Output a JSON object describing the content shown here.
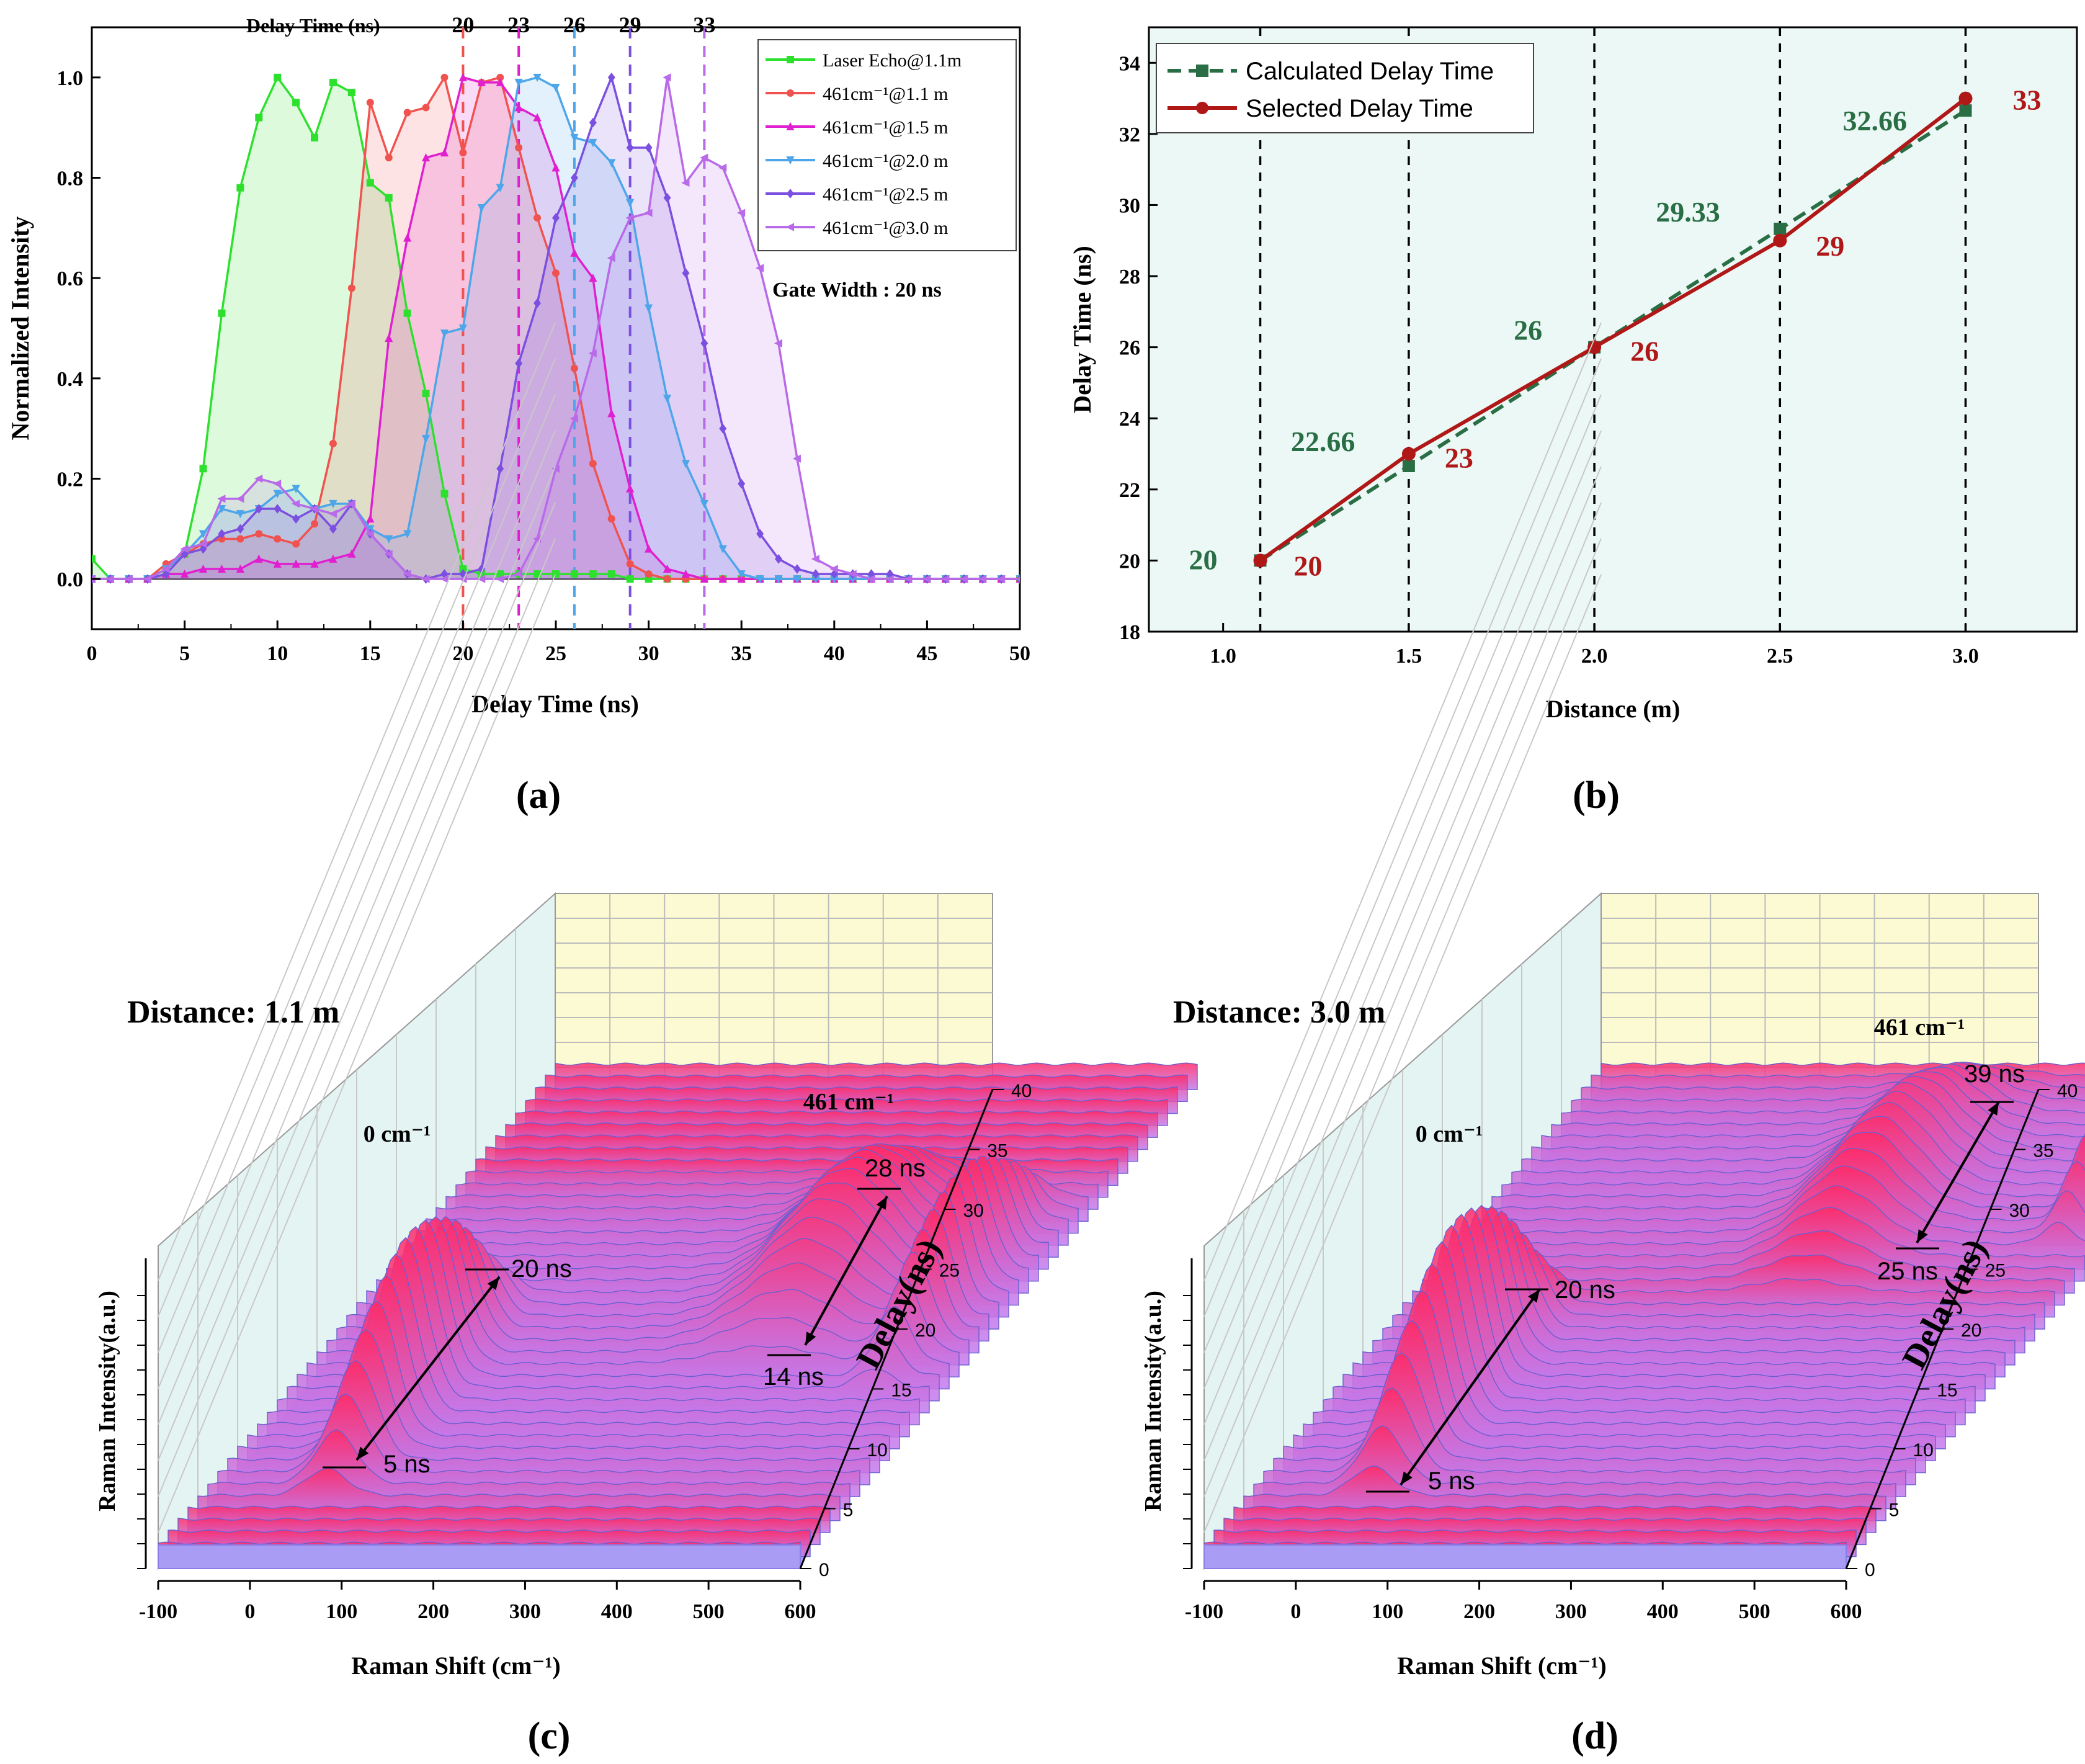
{
  "chart_data": [
    {
      "panel_label": "(a)",
      "type": "area",
      "title": "",
      "xlabel": "Delay Time (ns)",
      "ylabel": "Normalized  Intensity",
      "top_label": "Delay Time (ns)",
      "xlim": [
        0,
        50
      ],
      "ylim": [
        -0.1,
        1.1
      ],
      "xticks": [
        0,
        5,
        10,
        15,
        20,
        25,
        30,
        35,
        40,
        45,
        50
      ],
      "yticks": [
        0.0,
        0.2,
        0.4,
        0.6,
        0.8,
        1.0
      ],
      "annotation": "Gate Width : 20 ns",
      "markers": [
        {
          "x": 20,
          "label": "20",
          "color": "#f0524f"
        },
        {
          "x": 23,
          "label": "23",
          "color": "#e020d0"
        },
        {
          "x": 26,
          "label": "26",
          "color": "#4da6ea"
        },
        {
          "x": 29,
          "label": "29",
          "color": "#7b4fe0"
        },
        {
          "x": 33,
          "label": "33",
          "color": "#b86ae8"
        }
      ],
      "x": [
        0,
        1,
        2,
        3,
        4,
        5,
        6,
        7,
        8,
        9,
        10,
        11,
        12,
        13,
        14,
        15,
        16,
        17,
        18,
        19,
        20,
        21,
        22,
        23,
        24,
        25,
        26,
        27,
        28,
        29,
        30,
        31,
        32,
        33,
        34,
        35,
        36,
        37,
        38,
        39,
        40,
        41,
        42,
        43,
        44,
        45,
        46,
        47,
        48,
        49,
        50
      ],
      "series": [
        {
          "name": "Laser Echo@1.1m",
          "color": "#2ee02e",
          "marker": "square",
          "values": [
            0.04,
            0.0,
            0.0,
            0.0,
            0.02,
            0.05,
            0.22,
            0.53,
            0.78,
            0.92,
            1.0,
            0.95,
            0.88,
            0.99,
            0.97,
            0.79,
            0.76,
            0.53,
            0.37,
            0.17,
            0.02,
            0.01,
            0.01,
            0.01,
            0.01,
            0.01,
            0.01,
            0.01,
            0.01,
            0.0,
            0.0,
            0.0,
            0.0,
            0.0,
            0.0,
            0.0,
            0.0,
            0.0,
            0.0,
            0.0,
            0.0,
            0.0,
            0.0,
            0.0,
            0.0,
            0.0,
            0.0,
            0.0,
            0.0,
            0.0,
            0.0
          ]
        },
        {
          "name": "461cm⁻¹@1.1 m",
          "color": "#f0524f",
          "marker": "circle",
          "values": [
            0.0,
            0.0,
            0.0,
            0.0,
            0.03,
            0.05,
            0.07,
            0.08,
            0.08,
            0.09,
            0.08,
            0.07,
            0.11,
            0.27,
            0.58,
            0.95,
            0.84,
            0.93,
            0.94,
            1.0,
            0.85,
            0.99,
            1.0,
            0.86,
            0.72,
            0.61,
            0.42,
            0.23,
            0.12,
            0.03,
            0.01,
            0.0,
            0.0,
            0.0,
            0.0,
            0.0,
            0.0,
            0.0,
            0.0,
            0.0,
            0.0,
            0.0,
            0.0,
            0.0,
            0.0,
            0.0,
            0.0,
            0.0,
            0.0,
            0.0,
            0.0
          ]
        },
        {
          "name": "461cm⁻¹@1.5 m",
          "color": "#e020d0",
          "marker": "triangle-up",
          "values": [
            0.0,
            0.0,
            0.0,
            0.0,
            0.01,
            0.01,
            0.02,
            0.02,
            0.02,
            0.04,
            0.03,
            0.03,
            0.03,
            0.04,
            0.05,
            0.12,
            0.48,
            0.68,
            0.84,
            0.85,
            1.0,
            0.99,
            0.99,
            0.94,
            0.92,
            0.82,
            0.65,
            0.6,
            0.33,
            0.18,
            0.06,
            0.02,
            0.01,
            0.0,
            0.0,
            0.0,
            0.0,
            0.0,
            0.0,
            0.0,
            0.0,
            0.0,
            0.0,
            0.0,
            0.0,
            0.0,
            0.0,
            0.0,
            0.0,
            0.0,
            0.0
          ]
        },
        {
          "name": "461cm⁻¹@2.0 m",
          "color": "#4da6ea",
          "marker": "triangle-down",
          "values": [
            0.0,
            0.0,
            0.0,
            0.0,
            0.02,
            0.05,
            0.09,
            0.14,
            0.13,
            0.14,
            0.17,
            0.18,
            0.14,
            0.15,
            0.15,
            0.1,
            0.08,
            0.09,
            0.28,
            0.49,
            0.5,
            0.74,
            0.78,
            0.99,
            1.0,
            0.98,
            0.88,
            0.87,
            0.83,
            0.75,
            0.54,
            0.36,
            0.23,
            0.15,
            0.06,
            0.01,
            0.0,
            0.0,
            0.0,
            0.0,
            0.0,
            0.0,
            0.0,
            0.0,
            0.0,
            0.0,
            0.0,
            0.0,
            0.0,
            0.0,
            0.0
          ]
        },
        {
          "name": "461cm⁻¹@2.5 m",
          "color": "#7b4fe0",
          "marker": "diamond",
          "values": [
            0.0,
            0.0,
            0.0,
            0.0,
            0.01,
            0.05,
            0.06,
            0.09,
            0.1,
            0.14,
            0.14,
            0.12,
            0.14,
            0.1,
            0.15,
            0.09,
            0.05,
            0.01,
            0.0,
            0.01,
            0.01,
            0.02,
            0.22,
            0.43,
            0.55,
            0.72,
            0.8,
            0.91,
            1.0,
            0.86,
            0.86,
            0.76,
            0.61,
            0.47,
            0.3,
            0.19,
            0.09,
            0.04,
            0.02,
            0.01,
            0.01,
            0.01,
            0.01,
            0.01,
            0.0,
            0.0,
            0.0,
            0.0,
            0.0,
            0.0,
            0.0
          ]
        },
        {
          "name": "461cm⁻¹@3.0 m",
          "color": "#b86ae8",
          "marker": "triangle-left",
          "values": [
            0.0,
            0.0,
            0.0,
            0.0,
            0.02,
            0.06,
            0.07,
            0.16,
            0.16,
            0.2,
            0.19,
            0.15,
            0.14,
            0.13,
            0.15,
            0.09,
            0.05,
            0.01,
            0.0,
            0.0,
            0.0,
            0.0,
            0.0,
            0.01,
            0.08,
            0.22,
            0.32,
            0.45,
            0.64,
            0.72,
            0.73,
            1.0,
            0.79,
            0.84,
            0.82,
            0.73,
            0.62,
            0.47,
            0.24,
            0.04,
            0.02,
            0.01,
            0.0,
            0.0,
            0.0,
            0.0,
            0.0,
            0.0,
            0.0,
            0.0,
            0.0
          ]
        }
      ]
    },
    {
      "panel_label": "(b)",
      "type": "line",
      "title": "",
      "xlabel": "Distance (m)",
      "ylabel": "Delay Time (ns)",
      "xlim": [
        0.8,
        3.3
      ],
      "ylim": [
        18,
        35
      ],
      "xticks": [
        1.0,
        1.5,
        2.0,
        2.5,
        3.0
      ],
      "yticks": [
        18,
        20,
        22,
        24,
        26,
        28,
        30,
        32,
        34
      ],
      "vlines": [
        1.1,
        1.5,
        2.0,
        2.5,
        3.0
      ],
      "x": [
        1.1,
        1.5,
        2.0,
        2.5,
        3.0
      ],
      "series": [
        {
          "name": "Calculated Delay Time",
          "color": "#2a6e45",
          "style": "dashed",
          "marker": "square",
          "values": [
            20,
            22.66,
            26,
            29.33,
            32.66
          ],
          "labels": [
            "20",
            "22.66",
            "26",
            "29.33",
            "32.66"
          ]
        },
        {
          "name": "Selected Delay Time",
          "color": "#b01818",
          "style": "solid",
          "marker": "circle",
          "values": [
            20,
            23,
            26,
            29,
            33
          ],
          "labels": [
            "20",
            "23",
            "26",
            "29",
            "33"
          ]
        }
      ]
    },
    {
      "panel_label": "(c)",
      "type": "waterfall-3d",
      "distance_label": "Distance: 1.1 m",
      "xlabel": "Raman Shift (cm⁻¹)",
      "ylabel": "Raman Intensity(a.u.)",
      "zlabel": "Delay(ns)",
      "xticks": [
        -100,
        0,
        100,
        200,
        300,
        400,
        500,
        600
      ],
      "zticks": [
        0,
        5,
        10,
        15,
        20,
        25,
        30,
        35,
        40
      ],
      "peak_labels": [
        "0 cm⁻¹",
        "461 cm⁻¹"
      ],
      "ranges": [
        {
          "from": "5 ns",
          "to": "20 ns"
        },
        {
          "from": "14 ns",
          "to": "28 ns"
        }
      ]
    },
    {
      "panel_label": "(d)",
      "type": "waterfall-3d",
      "distance_label": "Distance: 3.0 m",
      "xlabel": "Raman Shift (cm⁻¹)",
      "ylabel": "Raman Intensity(a.u.)",
      "zlabel": "Delay(ns)",
      "xticks": [
        -100,
        0,
        100,
        200,
        300,
        400,
        500,
        600
      ],
      "zticks": [
        0,
        5,
        10,
        15,
        20,
        25,
        30,
        35,
        40
      ],
      "peak_labels": [
        "0 cm⁻¹",
        "461 cm⁻¹"
      ],
      "ranges": [
        {
          "from": "5 ns",
          "to": "20 ns"
        },
        {
          "from": "25 ns",
          "to": "39 ns"
        }
      ]
    }
  ]
}
